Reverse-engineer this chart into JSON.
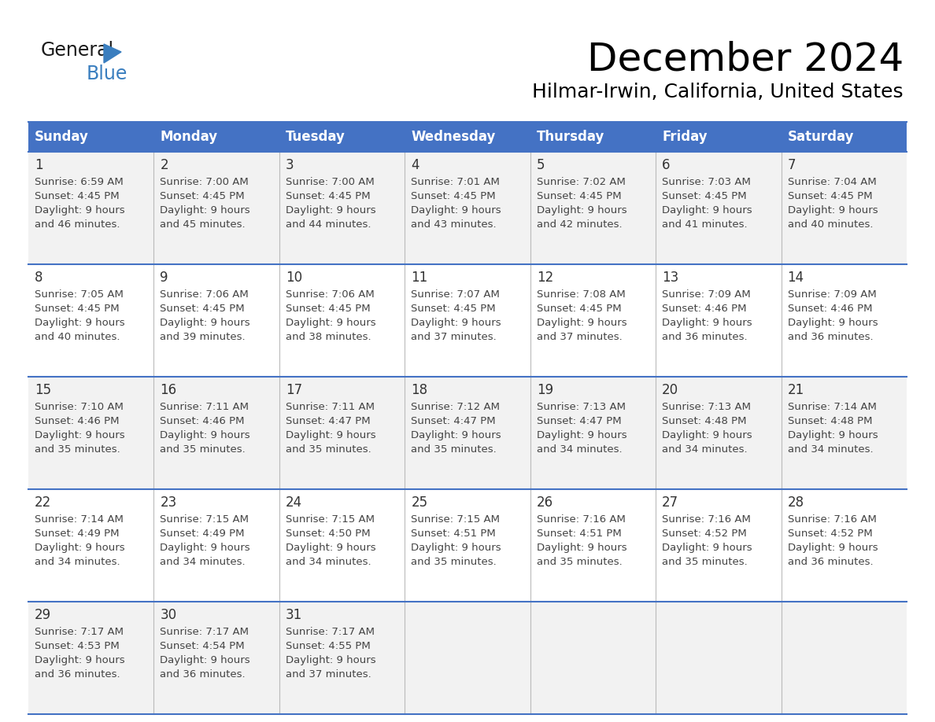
{
  "title": "December 2024",
  "subtitle": "Hilmar-Irwin, California, United States",
  "header_bg_color": "#4472C4",
  "header_text_color": "#FFFFFF",
  "row_bg_colors": [
    "#F2F2F2",
    "#FFFFFF",
    "#F2F2F2",
    "#FFFFFF",
    "#F2F2F2"
  ],
  "grid_line_color": "#4472C4",
  "day_names": [
    "Sunday",
    "Monday",
    "Tuesday",
    "Wednesday",
    "Thursday",
    "Friday",
    "Saturday"
  ],
  "days": [
    {
      "day": 1,
      "col": 0,
      "row": 0,
      "sunrise": "6:59 AM",
      "sunset": "4:45 PM",
      "daylight": "9 hours",
      "daylight2": "and 46 minutes."
    },
    {
      "day": 2,
      "col": 1,
      "row": 0,
      "sunrise": "7:00 AM",
      "sunset": "4:45 PM",
      "daylight": "9 hours",
      "daylight2": "and 45 minutes."
    },
    {
      "day": 3,
      "col": 2,
      "row": 0,
      "sunrise": "7:00 AM",
      "sunset": "4:45 PM",
      "daylight": "9 hours",
      "daylight2": "and 44 minutes."
    },
    {
      "day": 4,
      "col": 3,
      "row": 0,
      "sunrise": "7:01 AM",
      "sunset": "4:45 PM",
      "daylight": "9 hours",
      "daylight2": "and 43 minutes."
    },
    {
      "day": 5,
      "col": 4,
      "row": 0,
      "sunrise": "7:02 AM",
      "sunset": "4:45 PM",
      "daylight": "9 hours",
      "daylight2": "and 42 minutes."
    },
    {
      "day": 6,
      "col": 5,
      "row": 0,
      "sunrise": "7:03 AM",
      "sunset": "4:45 PM",
      "daylight": "9 hours",
      "daylight2": "and 41 minutes."
    },
    {
      "day": 7,
      "col": 6,
      "row": 0,
      "sunrise": "7:04 AM",
      "sunset": "4:45 PM",
      "daylight": "9 hours",
      "daylight2": "and 40 minutes."
    },
    {
      "day": 8,
      "col": 0,
      "row": 1,
      "sunrise": "7:05 AM",
      "sunset": "4:45 PM",
      "daylight": "9 hours",
      "daylight2": "and 40 minutes."
    },
    {
      "day": 9,
      "col": 1,
      "row": 1,
      "sunrise": "7:06 AM",
      "sunset": "4:45 PM",
      "daylight": "9 hours",
      "daylight2": "and 39 minutes."
    },
    {
      "day": 10,
      "col": 2,
      "row": 1,
      "sunrise": "7:06 AM",
      "sunset": "4:45 PM",
      "daylight": "9 hours",
      "daylight2": "and 38 minutes."
    },
    {
      "day": 11,
      "col": 3,
      "row": 1,
      "sunrise": "7:07 AM",
      "sunset": "4:45 PM",
      "daylight": "9 hours",
      "daylight2": "and 37 minutes."
    },
    {
      "day": 12,
      "col": 4,
      "row": 1,
      "sunrise": "7:08 AM",
      "sunset": "4:45 PM",
      "daylight": "9 hours",
      "daylight2": "and 37 minutes."
    },
    {
      "day": 13,
      "col": 5,
      "row": 1,
      "sunrise": "7:09 AM",
      "sunset": "4:46 PM",
      "daylight": "9 hours",
      "daylight2": "and 36 minutes."
    },
    {
      "day": 14,
      "col": 6,
      "row": 1,
      "sunrise": "7:09 AM",
      "sunset": "4:46 PM",
      "daylight": "9 hours",
      "daylight2": "and 36 minutes."
    },
    {
      "day": 15,
      "col": 0,
      "row": 2,
      "sunrise": "7:10 AM",
      "sunset": "4:46 PM",
      "daylight": "9 hours",
      "daylight2": "and 35 minutes."
    },
    {
      "day": 16,
      "col": 1,
      "row": 2,
      "sunrise": "7:11 AM",
      "sunset": "4:46 PM",
      "daylight": "9 hours",
      "daylight2": "and 35 minutes."
    },
    {
      "day": 17,
      "col": 2,
      "row": 2,
      "sunrise": "7:11 AM",
      "sunset": "4:47 PM",
      "daylight": "9 hours",
      "daylight2": "and 35 minutes."
    },
    {
      "day": 18,
      "col": 3,
      "row": 2,
      "sunrise": "7:12 AM",
      "sunset": "4:47 PM",
      "daylight": "9 hours",
      "daylight2": "and 35 minutes."
    },
    {
      "day": 19,
      "col": 4,
      "row": 2,
      "sunrise": "7:13 AM",
      "sunset": "4:47 PM",
      "daylight": "9 hours",
      "daylight2": "and 34 minutes."
    },
    {
      "day": 20,
      "col": 5,
      "row": 2,
      "sunrise": "7:13 AM",
      "sunset": "4:48 PM",
      "daylight": "9 hours",
      "daylight2": "and 34 minutes."
    },
    {
      "day": 21,
      "col": 6,
      "row": 2,
      "sunrise": "7:14 AM",
      "sunset": "4:48 PM",
      "daylight": "9 hours",
      "daylight2": "and 34 minutes."
    },
    {
      "day": 22,
      "col": 0,
      "row": 3,
      "sunrise": "7:14 AM",
      "sunset": "4:49 PM",
      "daylight": "9 hours",
      "daylight2": "and 34 minutes."
    },
    {
      "day": 23,
      "col": 1,
      "row": 3,
      "sunrise": "7:15 AM",
      "sunset": "4:49 PM",
      "daylight": "9 hours",
      "daylight2": "and 34 minutes."
    },
    {
      "day": 24,
      "col": 2,
      "row": 3,
      "sunrise": "7:15 AM",
      "sunset": "4:50 PM",
      "daylight": "9 hours",
      "daylight2": "and 34 minutes."
    },
    {
      "day": 25,
      "col": 3,
      "row": 3,
      "sunrise": "7:15 AM",
      "sunset": "4:51 PM",
      "daylight": "9 hours",
      "daylight2": "and 35 minutes."
    },
    {
      "day": 26,
      "col": 4,
      "row": 3,
      "sunrise": "7:16 AM",
      "sunset": "4:51 PM",
      "daylight": "9 hours",
      "daylight2": "and 35 minutes."
    },
    {
      "day": 27,
      "col": 5,
      "row": 3,
      "sunrise": "7:16 AM",
      "sunset": "4:52 PM",
      "daylight": "9 hours",
      "daylight2": "and 35 minutes."
    },
    {
      "day": 28,
      "col": 6,
      "row": 3,
      "sunrise": "7:16 AM",
      "sunset": "4:52 PM",
      "daylight": "9 hours",
      "daylight2": "and 36 minutes."
    },
    {
      "day": 29,
      "col": 0,
      "row": 4,
      "sunrise": "7:17 AM",
      "sunset": "4:53 PM",
      "daylight": "9 hours",
      "daylight2": "and 36 minutes."
    },
    {
      "day": 30,
      "col": 1,
      "row": 4,
      "sunrise": "7:17 AM",
      "sunset": "4:54 PM",
      "daylight": "9 hours",
      "daylight2": "and 36 minutes."
    },
    {
      "day": 31,
      "col": 2,
      "row": 4,
      "sunrise": "7:17 AM",
      "sunset": "4:55 PM",
      "daylight": "9 hours",
      "daylight2": "and 37 minutes."
    }
  ]
}
